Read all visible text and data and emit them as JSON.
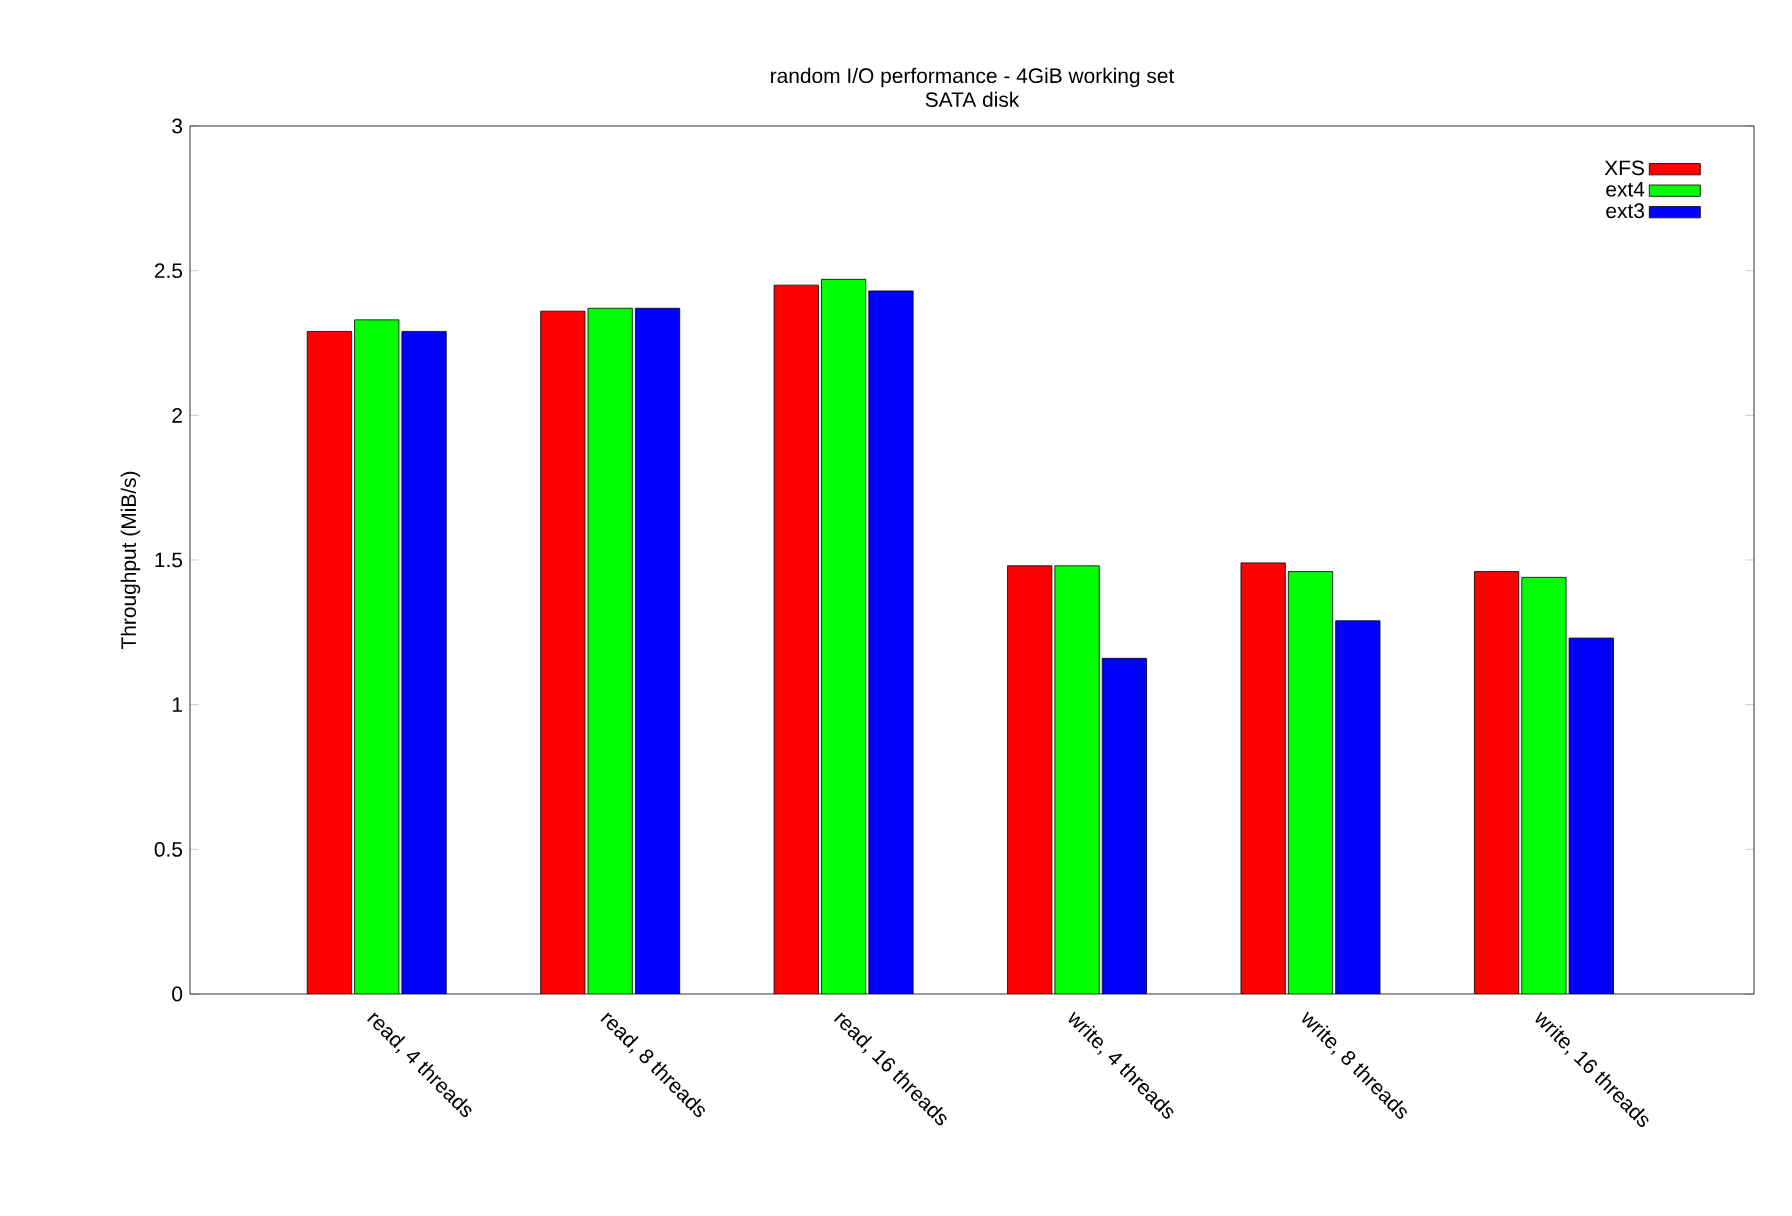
{
  "chart_data": {
    "type": "bar",
    "title": "random I/O performance - 4GiB working set",
    "subtitle": "SATA disk",
    "ylabel": "Throughput (MiB/s)",
    "categories": [
      "read, 4 threads",
      "read, 8 threads",
      "read, 16 threads",
      "write, 4 threads",
      "write, 8 threads",
      "write, 16 threads"
    ],
    "series": [
      {
        "name": "XFS",
        "color": "#ff0000",
        "values": [
          2.29,
          2.36,
          2.45,
          1.48,
          1.49,
          1.46
        ]
      },
      {
        "name": "ext4",
        "color": "#00ff00",
        "values": [
          2.33,
          2.37,
          2.47,
          1.48,
          1.46,
          1.44
        ]
      },
      {
        "name": "ext3",
        "color": "#0000ff",
        "values": [
          2.29,
          2.37,
          2.43,
          1.16,
          1.29,
          1.23
        ]
      }
    ],
    "ylim": [
      0,
      3
    ],
    "yticks": [
      0,
      0.5,
      1,
      1.5,
      2,
      2.5,
      3
    ],
    "legend": "top right"
  }
}
